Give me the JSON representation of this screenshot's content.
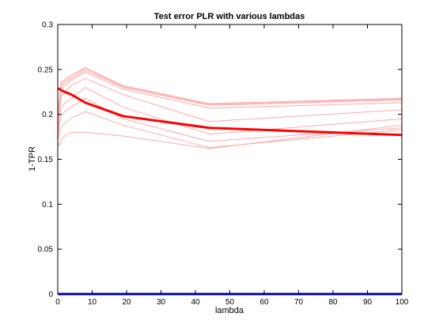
{
  "chart_data": {
    "type": "line",
    "title": "Test error PLR with various lambdas",
    "xlabel": "lambda",
    "ylabel": "1-TPR",
    "xlim": [
      0,
      100
    ],
    "ylim": [
      0,
      0.3
    ],
    "x_ticks": [
      0,
      10,
      20,
      30,
      40,
      50,
      60,
      70,
      80,
      90,
      100
    ],
    "y_ticks": [
      0,
      0.05,
      0.1,
      0.15,
      0.2,
      0.25,
      0.3
    ],
    "x_tick_labels": [
      "0",
      "10",
      "20",
      "30",
      "40",
      "50",
      "60",
      "70",
      "80",
      "90",
      "100"
    ],
    "y_tick_labels": [
      "0",
      "0.05",
      "0.1",
      "0.15",
      "0.2",
      "0.25",
      "0.3"
    ],
    "grid": false,
    "x": [
      0.1,
      0.5,
      1,
      2,
      4,
      8,
      19,
      44,
      100
    ],
    "series": [
      {
        "style": "thin",
        "color": "#ffaaaa",
        "values": [
          0.205,
          0.218,
          0.236,
          0.239,
          0.244,
          0.252,
          0.232,
          0.212,
          0.218
        ]
      },
      {
        "style": "thin",
        "color": "#ffaaaa",
        "values": [
          0.2,
          0.214,
          0.234,
          0.237,
          0.242,
          0.251,
          0.231,
          0.211,
          0.217
        ]
      },
      {
        "style": "thin",
        "color": "#ffaaaa",
        "values": [
          0.195,
          0.211,
          0.232,
          0.235,
          0.24,
          0.249,
          0.23,
          0.21,
          0.216
        ]
      },
      {
        "style": "thin",
        "color": "#ffaaaa",
        "values": [
          0.192,
          0.208,
          0.23,
          0.232,
          0.238,
          0.247,
          0.228,
          0.207,
          0.213
        ]
      },
      {
        "style": "thin",
        "color": "#ffaaaa",
        "values": [
          0.188,
          0.204,
          0.22,
          0.225,
          0.232,
          0.24,
          0.222,
          0.192,
          0.205
        ]
      },
      {
        "style": "thin",
        "color": "#ffaaaa",
        "values": [
          0.182,
          0.198,
          0.208,
          0.212,
          0.218,
          0.23,
          0.208,
          0.178,
          0.195
        ]
      },
      {
        "style": "thin",
        "color": "#ffaaaa",
        "values": [
          0.176,
          0.19,
          0.198,
          0.203,
          0.208,
          0.218,
          0.195,
          0.17,
          0.185
        ]
      },
      {
        "style": "thin",
        "color": "#ffaaaa",
        "values": [
          0.172,
          0.181,
          0.185,
          0.19,
          0.196,
          0.203,
          0.188,
          0.163,
          0.183
        ]
      },
      {
        "style": "thin",
        "color": "#ffaaaa",
        "values": [
          0.168,
          0.165,
          0.172,
          0.176,
          0.18,
          0.18,
          0.176,
          0.162,
          0.188
        ]
      },
      {
        "style": "thick",
        "color": "#ff0000",
        "values": [
          0.229,
          0.228,
          0.227,
          0.225,
          0.222,
          0.213,
          0.198,
          0.185,
          0.177
        ]
      },
      {
        "style": "thick",
        "color": "#0000ff",
        "values": [
          0,
          0,
          0,
          0,
          0,
          0,
          0,
          0,
          0
        ]
      }
    ]
  }
}
